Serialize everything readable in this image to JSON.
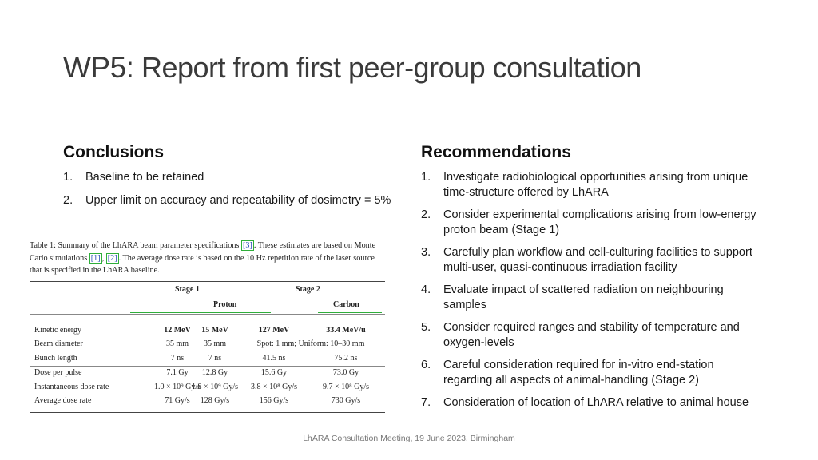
{
  "title": {
    "prefix": "WP5:",
    "rest": " Report from first peer-group consultation"
  },
  "conclusions": {
    "heading": "Conclusions",
    "items": [
      {
        "num": "1.",
        "text": "Baseline to be retained"
      },
      {
        "num": "2.",
        "text": "Upper limit on accuracy and repeatability of dosimetry = 5%"
      }
    ]
  },
  "recommendations": {
    "heading": "Recommendations",
    "items": [
      {
        "num": "1.",
        "text": "Investigate radiobiological opportunities arising from unique time-structure offered by LhARA"
      },
      {
        "num": "2.",
        "text": "Consider experimental complications arising from low-energy proton beam (Stage 1)"
      },
      {
        "num": "3.",
        "text": "Carefully plan workflow and cell-culturing facilities to support multi-user, quasi-continuous irradiation facility"
      },
      {
        "num": "4.",
        "text": "Evaluate impact of scattered radiation on neighbouring samples"
      },
      {
        "num": "5.",
        "text": "Consider required ranges and stability of temperature and oxygen-levels"
      },
      {
        "num": "6.",
        "text": "Careful consideration required for in-vitro end-station regarding all aspects of animal-handling (Stage 2)"
      },
      {
        "num": "7.",
        "text": "Consideration of location of LhARA relative to animal house"
      }
    ]
  },
  "table": {
    "caption_a": "Table 1:   Summary of the LhARA beam parameter specifications ",
    "caption_ref1": "[3]",
    "caption_b": ".  These estimates are based on Monte Carlo simulations ",
    "caption_ref2": "[1]",
    "caption_sep": ", ",
    "caption_ref3": "[2]",
    "caption_c": ". The average dose rate is based on the 10 Hz repetition rate of the laser source that is specified in the LhARA baseline.",
    "stage1": "Stage 1",
    "stage2": "Stage 2",
    "proton": "Proton",
    "carbon": "Carbon",
    "rows": [
      {
        "label": "Kinetic energy",
        "c1": "12 MeV",
        "c2": "15 MeV",
        "c3": "127 MeV",
        "c4": "33.4 MeV/u"
      },
      {
        "label": "Beam diameter",
        "c1": "35 mm",
        "c2": "35 mm",
        "c3": "Spot: 1 mm; Uniform:  10–30 mm",
        "c4": ""
      },
      {
        "label": "Bunch length",
        "c1": "7 ns",
        "c2": "7 ns",
        "c3": "41.5 ns",
        "c4": "75.2 ns"
      },
      {
        "label": "Dose per pulse",
        "c1": "7.1 Gy",
        "c2": "12.8 Gy",
        "c3": "15.6 Gy",
        "c4": "73.0 Gy"
      },
      {
        "label": "Instantaneous dose rate",
        "c1": "1.0 × 10⁹ Gy/s",
        "c2": "1.8 × 10⁹ Gy/s",
        "c3": "3.8 × 10⁸ Gy/s",
        "c4": "9.7 × 10⁸ Gy/s"
      },
      {
        "label": "Average dose rate",
        "c1": "71 Gy/s",
        "c2": "128 Gy/s",
        "c3": "156 Gy/s",
        "c4": "730 Gy/s"
      }
    ]
  },
  "footer": "LhARA Consultation Meeting, 19 June 2023, Birmingham"
}
